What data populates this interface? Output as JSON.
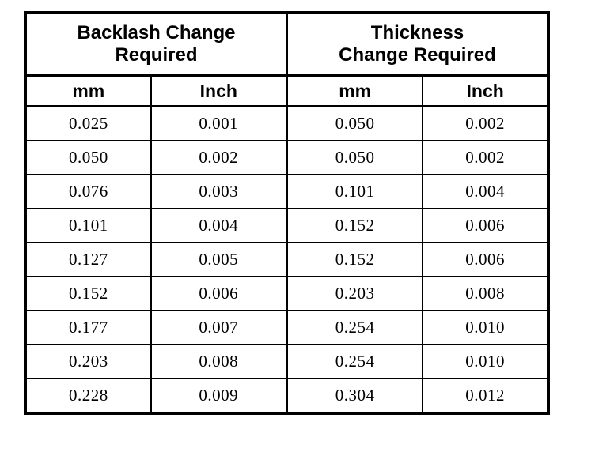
{
  "table": {
    "col_groups": [
      {
        "title": "Backlash Change Required"
      },
      {
        "title": "Thickness Change Required"
      }
    ],
    "sub_headers": [
      "mm",
      "Inch",
      "mm",
      "Inch"
    ],
    "rows": [
      [
        "0.025",
        "0.001",
        "0.050",
        "0.002"
      ],
      [
        "0.050",
        "0.002",
        "0.050",
        "0.002"
      ],
      [
        "0.076",
        "0.003",
        "0.101",
        "0.004"
      ],
      [
        "0.101",
        "0.004",
        "0.152",
        "0.006"
      ],
      [
        "0.127",
        "0.005",
        "0.152",
        "0.006"
      ],
      [
        "0.152",
        "0.006",
        "0.203",
        "0.008"
      ],
      [
        "0.177",
        "0.007",
        "0.254",
        "0.010"
      ],
      [
        "0.203",
        "0.008",
        "0.254",
        "0.010"
      ],
      [
        "0.228",
        "0.009",
        "0.304",
        "0.012"
      ]
    ]
  },
  "colors": {
    "border": "#000000",
    "background": "#ffffff",
    "text": "#000000"
  }
}
